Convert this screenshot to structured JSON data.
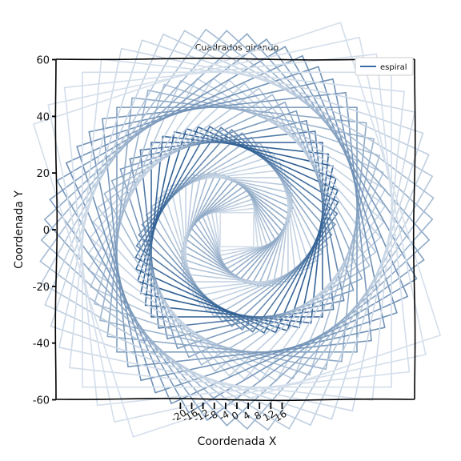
{
  "chart_data": {
    "type": "line",
    "title": "Cuadrados girando",
    "xlabel": "Coordenada X",
    "ylabel": "Coordenada Y",
    "xlim": [
      -60,
      60
    ],
    "ylim": [
      -60,
      60
    ],
    "x_ticks": [
      -20,
      -16,
      -12,
      -8,
      -4,
      0,
      4,
      8,
      12,
      16
    ],
    "y_ticks": [
      -60,
      -40,
      -20,
      0,
      20,
      40,
      60
    ],
    "legend": {
      "position": "top-right",
      "entries": [
        "espiral"
      ]
    },
    "series": [
      {
        "name": "espiral",
        "shape": "rotating squares spiral",
        "segments": 256,
        "rotation_step_deg": 6,
        "scale_step": 0.052,
        "start_size": 6,
        "end_size": 58,
        "color_start": "#f2f6fb",
        "color_peak": "#2f5f93",
        "legend_color": "#3a6ea5"
      }
    ],
    "grid": false,
    "style": "xkcd"
  }
}
